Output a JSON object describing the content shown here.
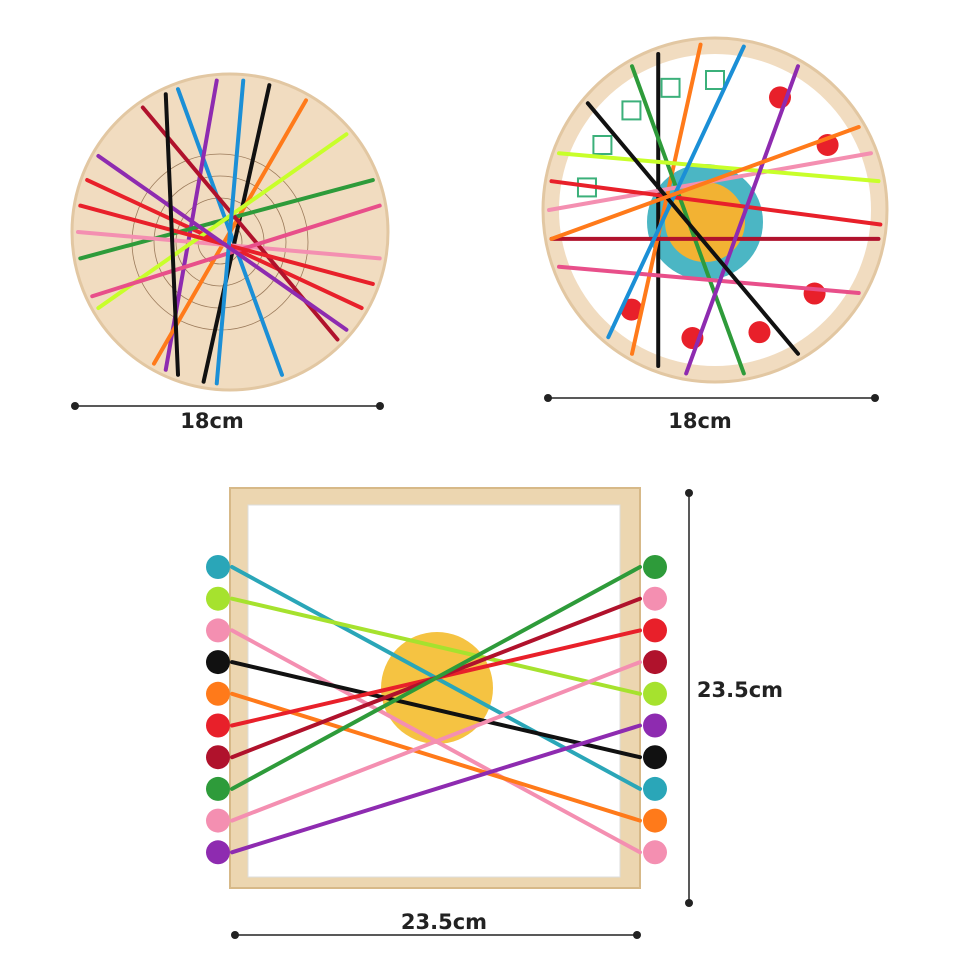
{
  "boards": [
    {
      "width_label": "18cm"
    },
    {
      "width_label": "18cm"
    },
    {
      "width_label": "23.5cm",
      "height_label": "23.5cm"
    }
  ]
}
